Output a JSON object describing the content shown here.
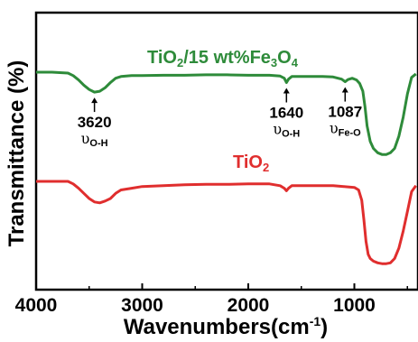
{
  "chart_data": {
    "type": "line",
    "title": "",
    "xlabel": "Wavenumbers(cm-1)",
    "ylabel": "Transmittance (%)",
    "xlim": [
      4000,
      400
    ],
    "x_ticks": [
      "4000",
      "3000",
      "2000",
      "1000"
    ],
    "x_tick_values": [
      4000,
      3000,
      2000,
      1000
    ],
    "y_ticks": "none",
    "grid": false,
    "series": [
      {
        "name": "TiO2/15 wt%Fe3O4",
        "color": "#2e8b3a",
        "points": [
          [
            4000,
            0.0
          ],
          [
            3850,
            0.0
          ],
          [
            3700,
            0.01
          ],
          [
            3650,
            0.04
          ],
          [
            3600,
            0.09
          ],
          [
            3550,
            0.15
          ],
          [
            3500,
            0.2
          ],
          [
            3450,
            0.23
          ],
          [
            3400,
            0.22
          ],
          [
            3350,
            0.18
          ],
          [
            3300,
            0.12
          ],
          [
            3250,
            0.07
          ],
          [
            3200,
            0.05
          ],
          [
            3100,
            0.04
          ],
          [
            3000,
            0.04
          ],
          [
            2800,
            0.035
          ],
          [
            2600,
            0.035
          ],
          [
            2400,
            0.03
          ],
          [
            2200,
            0.03
          ],
          [
            2000,
            0.035
          ],
          [
            1800,
            0.035
          ],
          [
            1700,
            0.045
          ],
          [
            1660,
            0.07
          ],
          [
            1640,
            0.12
          ],
          [
            1620,
            0.08
          ],
          [
            1590,
            0.05
          ],
          [
            1500,
            0.05
          ],
          [
            1400,
            0.05
          ],
          [
            1300,
            0.05
          ],
          [
            1200,
            0.055
          ],
          [
            1120,
            0.08
          ],
          [
            1087,
            0.11
          ],
          [
            1060,
            0.085
          ],
          [
            1020,
            0.07
          ],
          [
            980,
            0.09
          ],
          [
            950,
            0.13
          ],
          [
            920,
            0.22
          ],
          [
            900,
            0.4
          ],
          [
            880,
            0.62
          ],
          [
            850,
            0.8
          ],
          [
            820,
            0.88
          ],
          [
            780,
            0.93
          ],
          [
            740,
            0.95
          ],
          [
            700,
            0.95
          ],
          [
            660,
            0.93
          ],
          [
            620,
            0.88
          ],
          [
            580,
            0.74
          ],
          [
            540,
            0.52
          ],
          [
            500,
            0.25
          ],
          [
            460,
            0.06
          ],
          [
            420,
            0.02
          ]
        ]
      },
      {
        "name": "TiO2",
        "color": "#e02e2e",
        "points": [
          [
            4000,
            0.0
          ],
          [
            3800,
            0.0
          ],
          [
            3700,
            0.0
          ],
          [
            3650,
            0.03
          ],
          [
            3600,
            0.08
          ],
          [
            3550,
            0.14
          ],
          [
            3500,
            0.2
          ],
          [
            3450,
            0.24
          ],
          [
            3400,
            0.25
          ],
          [
            3350,
            0.23
          ],
          [
            3300,
            0.2
          ],
          [
            3250,
            0.14
          ],
          [
            3200,
            0.1
          ],
          [
            3100,
            0.08
          ],
          [
            3000,
            0.06
          ],
          [
            2800,
            0.05
          ],
          [
            2600,
            0.04
          ],
          [
            2400,
            0.035
          ],
          [
            2200,
            0.035
          ],
          [
            2000,
            0.03
          ],
          [
            1800,
            0.03
          ],
          [
            1700,
            0.05
          ],
          [
            1660,
            0.08
          ],
          [
            1640,
            0.11
          ],
          [
            1620,
            0.08
          ],
          [
            1590,
            0.05
          ],
          [
            1500,
            0.05
          ],
          [
            1400,
            0.05
          ],
          [
            1300,
            0.05
          ],
          [
            1200,
            0.05
          ],
          [
            1100,
            0.06
          ],
          [
            1000,
            0.07
          ],
          [
            960,
            0.1
          ],
          [
            930,
            0.22
          ],
          [
            910,
            0.45
          ],
          [
            890,
            0.7
          ],
          [
            870,
            0.85
          ],
          [
            850,
            0.9
          ],
          [
            820,
            0.93
          ],
          [
            780,
            0.95
          ],
          [
            740,
            0.96
          ],
          [
            700,
            0.96
          ],
          [
            660,
            0.95
          ],
          [
            620,
            0.9
          ],
          [
            580,
            0.78
          ],
          [
            540,
            0.58
          ],
          [
            500,
            0.35
          ],
          [
            460,
            0.12
          ],
          [
            420,
            0.05
          ]
        ]
      }
    ],
    "annotations": [
      {
        "value": "3620",
        "mode": "O-H",
        "x": 3450
      },
      {
        "value": "1640",
        "mode": "O-H",
        "x": 1640
      },
      {
        "value": "1087",
        "mode": "Fe-O",
        "x": 1087
      }
    ]
  },
  "labels": {
    "green_series": {
      "a": "TiO",
      "a_sub": "2",
      "b": "/15 wt%Fe",
      "b_sub": "3",
      "c": "O",
      "c_sub": "4"
    },
    "red_series": {
      "a": "TiO",
      "a_sub": "2"
    },
    "xlabel_main": "Wavenumbers(cm",
    "xlabel_sup": "-1",
    "xlabel_close": ")",
    "ylabel": "Transmittance (%)",
    "upsilon": "υ"
  }
}
